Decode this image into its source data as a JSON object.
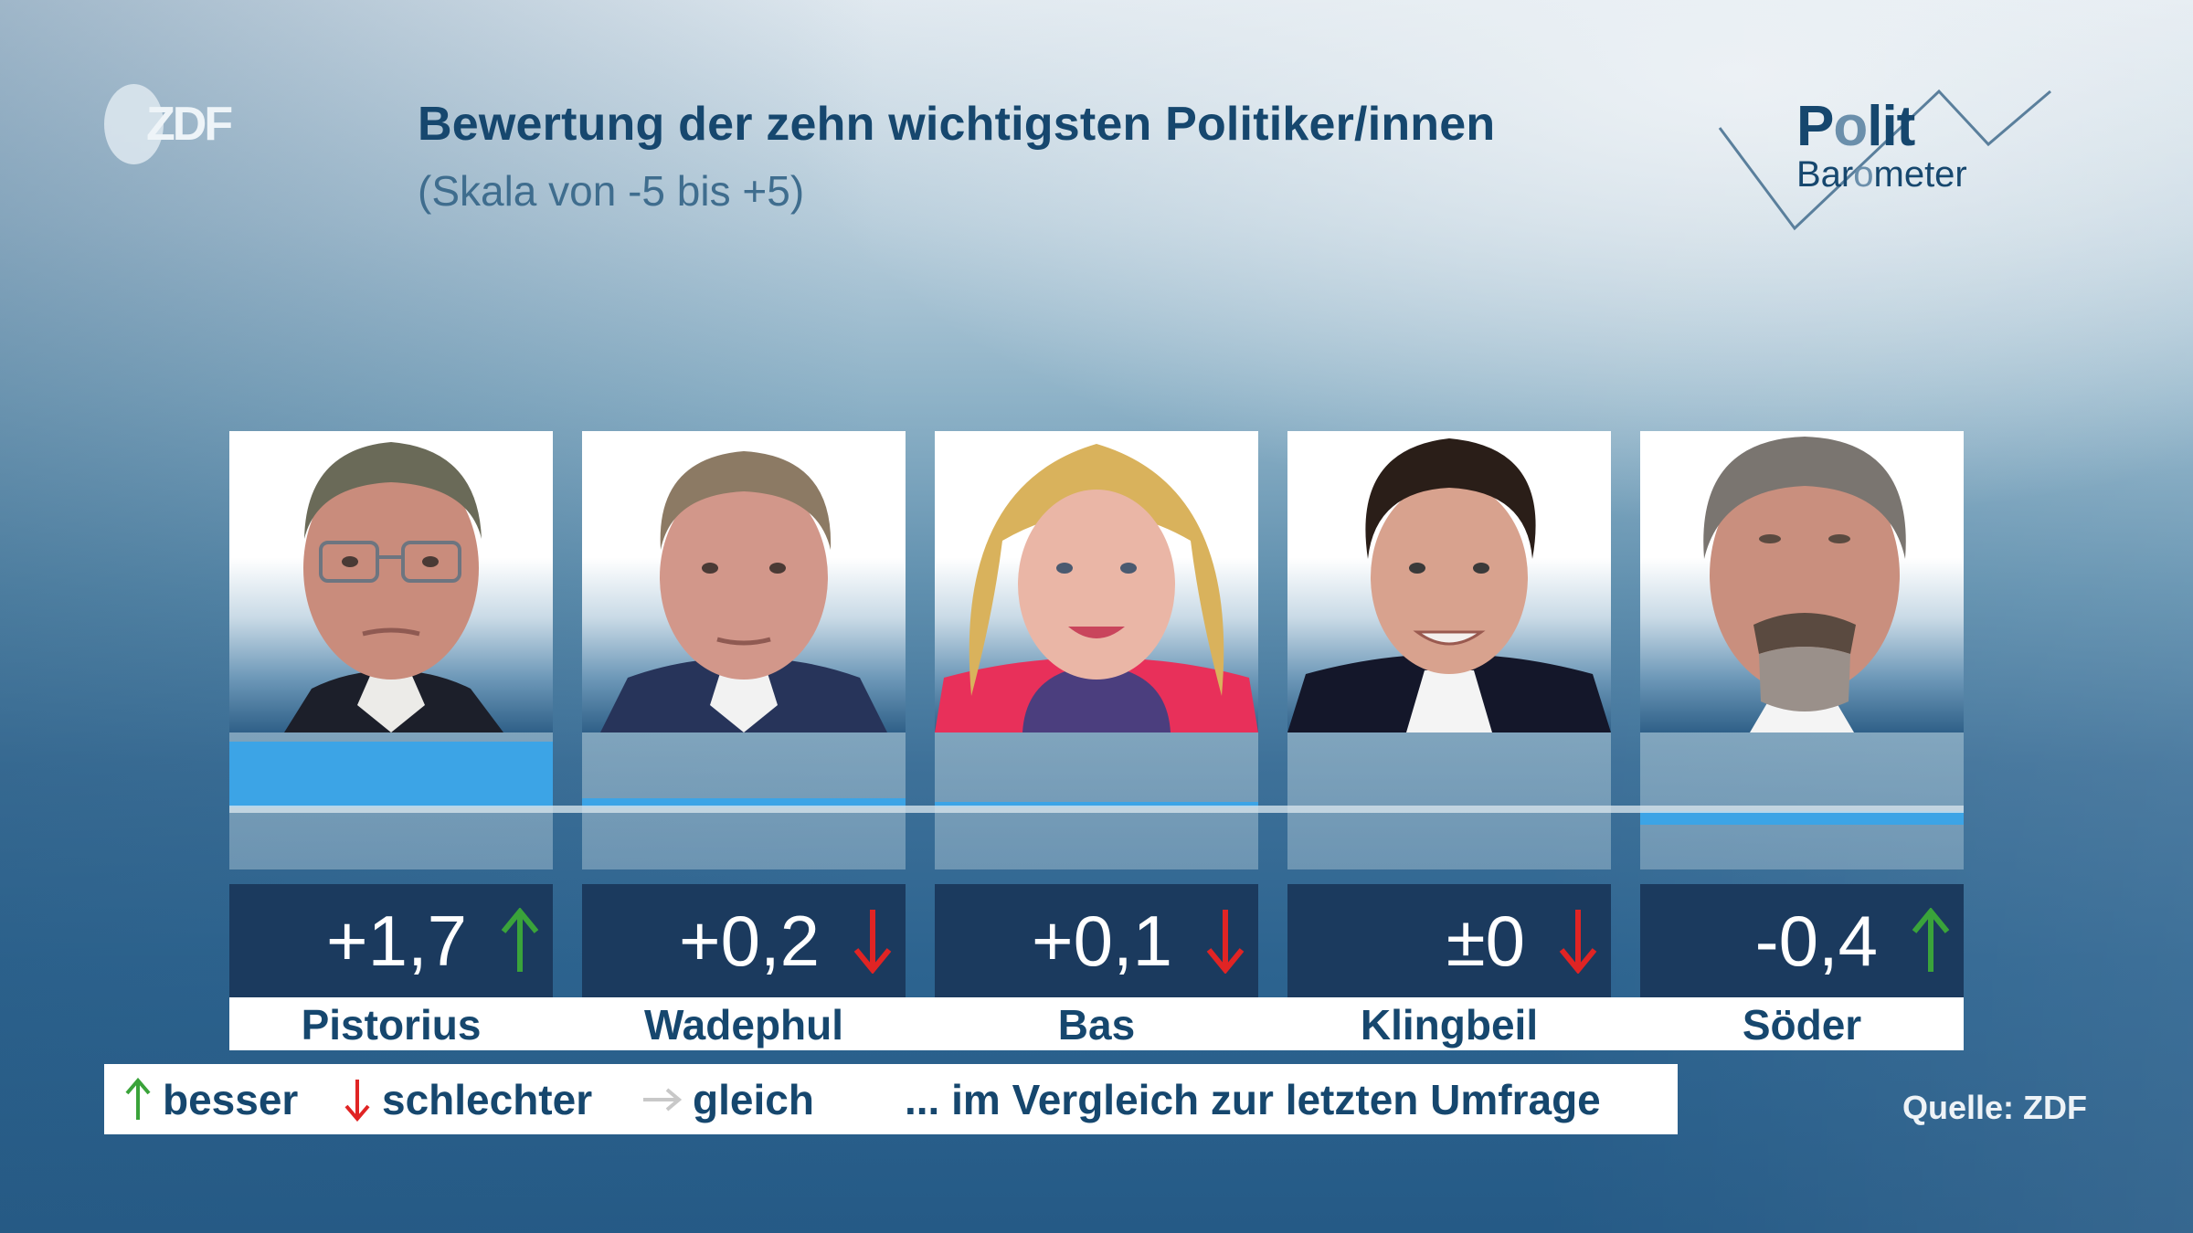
{
  "header": {
    "logo": "ZDF",
    "title": "Bewertung der zehn wichtigsten Politiker/innen",
    "subtitle": "(Skala von -5 bis +5)",
    "brand_logo": {
      "line1": "Polit",
      "line2": "Barometer"
    }
  },
  "politicians": [
    {
      "name": "Pistorius",
      "value_label": "+1,7",
      "value": 1.7,
      "trend": "up",
      "trend_icon": "arrow-up-icon",
      "trend_color": "#3aa33a"
    },
    {
      "name": "Wadephul",
      "value_label": "+0,2",
      "value": 0.2,
      "trend": "down",
      "trend_icon": "arrow-down-icon",
      "trend_color": "#e02424"
    },
    {
      "name": "Bas",
      "value_label": "+0,1",
      "value": 0.1,
      "trend": "down",
      "trend_icon": "arrow-down-icon",
      "trend_color": "#e02424"
    },
    {
      "name": "Klingbeil",
      "value_label": "±0",
      "value": 0.0,
      "trend": "down",
      "trend_icon": "arrow-down-icon",
      "trend_color": "#e02424"
    },
    {
      "name": "Söder",
      "value_label": "-0,4",
      "value": -0.4,
      "trend": "up",
      "trend_icon": "arrow-up-icon",
      "trend_color": "#3aa33a"
    }
  ],
  "legend": {
    "up": {
      "label": "besser",
      "icon": "arrow-up-icon",
      "color": "#3aa33a"
    },
    "down": {
      "label": "schlechter",
      "icon": "arrow-down-icon",
      "color": "#e02424"
    },
    "same": {
      "label": "gleich",
      "icon": "arrow-right-icon",
      "color": "#c8c8c8"
    },
    "note": "... im Vergleich zur letzten Umfrage"
  },
  "footer": {
    "source": "Quelle: ZDF"
  },
  "colors": {
    "bar": "#3ca4e6",
    "value_box": "#1b3a5e",
    "title": "#16476e",
    "up_arrow": "#3aa33a",
    "down_arrow": "#e02424"
  },
  "chart_data": {
    "type": "bar",
    "title": "Bewertung der zehn wichtigsten Politiker/innen",
    "subtitle": "(Skala von -5 bis +5)",
    "categories": [
      "Pistorius",
      "Wadephul",
      "Bas",
      "Klingbeil",
      "Söder"
    ],
    "values": [
      1.7,
      0.2,
      0.1,
      0.0,
      -0.4
    ],
    "value_labels": [
      "+1,7",
      "+0,2",
      "+0,1",
      "±0",
      "-0,4"
    ],
    "trend_vs_last_poll": [
      "up",
      "down",
      "down",
      "down",
      "up"
    ],
    "ylim": [
      -5,
      5
    ],
    "xlabel": "",
    "ylabel": "",
    "grid": false,
    "legend": [
      "besser",
      "schlechter",
      "gleich"
    ],
    "legend_note": "... im Vergleich zur letzten Umfrage",
    "legend_position": "bottom-left",
    "source": "Quelle: ZDF"
  }
}
